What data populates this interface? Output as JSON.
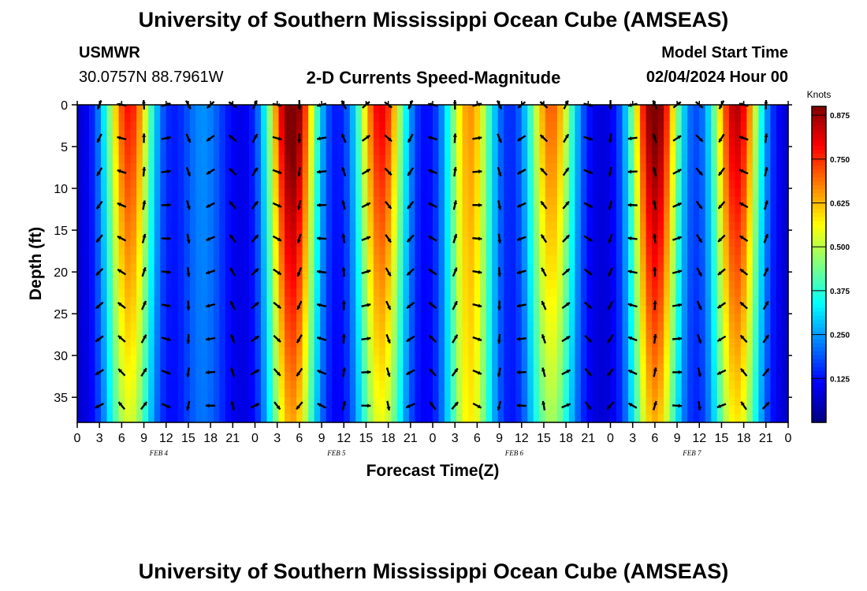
{
  "header": {
    "title": "University of Southern Mississippi Ocean Cube (AMSEAS)",
    "station": "USMWR",
    "coords": "30.0757N  88.7961W",
    "subtitle": "2-D Currents Speed-Magnitude",
    "model_label": "Model Start Time",
    "model_time": "02/04/2024 Hour 00"
  },
  "footer": {
    "title": "University of Southern Mississippi Ocean Cube (AMSEAS)"
  },
  "chart_data": {
    "type": "heatmap",
    "title": "2-D Currents Speed-Magnitude",
    "xlabel": "Forecast Time(Z)",
    "ylabel": "Depth (ft)",
    "x_range_hours": [
      0,
      96
    ],
    "x_tick_labels": [
      "0",
      "3",
      "6",
      "9",
      "12",
      "15",
      "18",
      "21",
      "0",
      "3",
      "6",
      "9",
      "12",
      "15",
      "18",
      "21",
      "0",
      "3",
      "6",
      "9",
      "12",
      "15",
      "18",
      "21",
      "0",
      "3",
      "6",
      "9",
      "12",
      "15",
      "18",
      "21",
      "0"
    ],
    "date_labels": [
      {
        "label": "FEB 4",
        "hour": 11
      },
      {
        "label": "FEB 5",
        "hour": 35
      },
      {
        "label": "FEB 6",
        "hour": 59
      },
      {
        "label": "FEB 7",
        "hour": 83
      }
    ],
    "y_range_ft": [
      0,
      38
    ],
    "y_ticks": [
      0,
      5,
      10,
      15,
      20,
      25,
      30,
      35
    ],
    "colorbar": {
      "label": "Knots",
      "min": 0.0,
      "max": 0.9,
      "ticks": [
        "0.125",
        "0.250",
        "0.375",
        "0.500",
        "0.625",
        "0.750",
        "0.875"
      ]
    },
    "speed_peaks_knots": [
      {
        "hour": 7,
        "peak": 0.72
      },
      {
        "hour": 17,
        "peak": 0.18
      },
      {
        "hour": 29,
        "peak": 0.9
      },
      {
        "hour": 41,
        "peak": 0.75
      },
      {
        "hour": 53,
        "peak": 0.6
      },
      {
        "hour": 64,
        "peak": 0.65
      },
      {
        "hour": 78,
        "peak": 0.88
      },
      {
        "hour": 89,
        "peak": 0.8
      }
    ],
    "arrow_depths_ft": [
      0,
      4,
      8,
      12,
      16,
      20,
      24,
      28,
      32,
      36
    ]
  }
}
